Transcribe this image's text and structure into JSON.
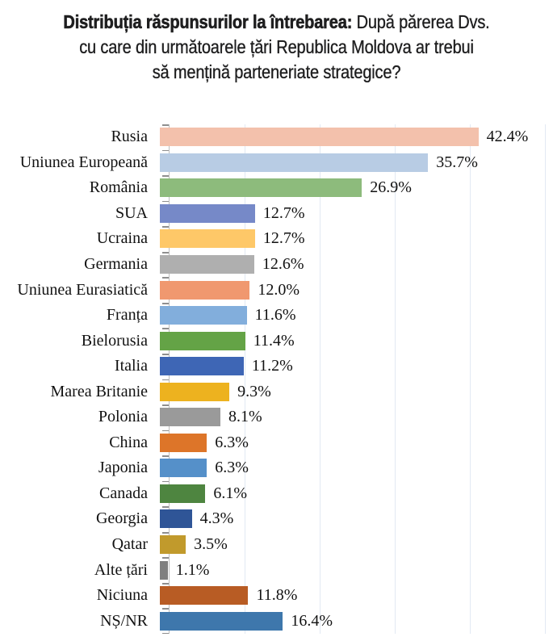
{
  "title": {
    "line1_bold": "Distribuția răspunsurilor la întrebarea:",
    "line1_rest": " După părerea Dvs.",
    "line2": "cu care din următoarele țări Republica Moldova ar trebui",
    "line3": "să mențină parteneriate strategice?"
  },
  "chart_data": {
    "type": "bar",
    "orientation": "horizontal",
    "title": "Distribuția răspunsurilor la întrebarea: După părerea Dvs. cu care din următoarele țări Republica Moldova ar trebui să mențină parteneriate strategice?",
    "xlabel": "",
    "ylabel": "",
    "xlim": [
      0,
      50
    ],
    "grid": true,
    "gridlines_pct": [
      10,
      20,
      30,
      40,
      50
    ],
    "value_suffix": "%",
    "categories": [
      "Rusia",
      "Uniunea Europeană",
      "România",
      "SUA",
      "Ucraina",
      "Germania",
      "Uniunea Eurasiatică",
      "Franța",
      "Bielorusia",
      "Italia",
      "Marea Britanie",
      "Polonia",
      "China",
      "Japonia",
      "Canada",
      "Georgia",
      "Qatar",
      "Alte țări",
      "Niciuna",
      "NȘ/NR"
    ],
    "values": [
      42.4,
      35.7,
      26.9,
      12.7,
      12.7,
      12.6,
      12.0,
      11.6,
      11.4,
      11.2,
      9.3,
      8.1,
      6.3,
      6.3,
      6.1,
      4.3,
      3.5,
      1.1,
      11.8,
      16.4
    ],
    "value_labels": [
      "42.4%",
      "35.7%",
      "26.9%",
      "12.7%",
      "12.7%",
      "12.6%",
      "12.0%",
      "11.6%",
      "11.4%",
      "11.2%",
      "9.3%",
      "8.1%",
      "6.3%",
      "6.3%",
      "6.1%",
      "4.3%",
      "3.5%",
      "1.1%",
      "11.8%",
      "16.4%"
    ],
    "bar_colors": [
      "#F3C1AC",
      "#B8CCE4",
      "#8DBB7C",
      "#7689C8",
      "#FEC868",
      "#AFAFAF",
      "#F0986F",
      "#82AEDC",
      "#64A346",
      "#3E66B5",
      "#EDB21F",
      "#9A9A9A",
      "#DD7529",
      "#5590C9",
      "#4E8540",
      "#2F5597",
      "#C19A2C",
      "#7F7F7F",
      "#B85C24",
      "#3E77AC"
    ]
  },
  "colors": {
    "title_text": "#1e1e1f",
    "label_text": "#121212",
    "axis_line": "#bebebe",
    "tick": "#8f8f8f",
    "gridline": "#e2e9f3",
    "background": "#ffffff"
  }
}
